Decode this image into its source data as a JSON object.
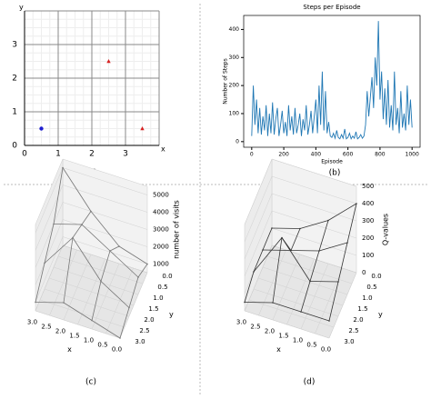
{
  "chart_data": [
    {
      "type": "scatter",
      "caption": "(a)",
      "xlabel": "x",
      "ylabel": "y",
      "xlim": [
        0,
        4
      ],
      "ylim": [
        0,
        4
      ],
      "xticks": [
        0,
        1,
        2,
        3
      ],
      "yticks": [
        0,
        1,
        2,
        3
      ],
      "grid": true,
      "series": [
        {
          "color": "#1f1fd0",
          "marker": "circle",
          "x": [
            0.5
          ],
          "values": [
            0.5
          ]
        },
        {
          "color": "#d62020",
          "marker": "triangle",
          "x": [
            2.5,
            3.5
          ],
          "values": [
            2.5,
            0.5
          ]
        }
      ]
    },
    {
      "type": "line",
      "caption": "(b)",
      "title": "Steps per Episode",
      "xlabel": "Episode",
      "ylabel": "Number of Steps",
      "xlim": [
        -50,
        1050
      ],
      "ylim": [
        -20,
        450
      ],
      "xticks": [
        0,
        200,
        400,
        600,
        800,
        1000
      ],
      "yticks": [
        0,
        100,
        200,
        300,
        400
      ],
      "series": [
        {
          "color": "#1f77b4",
          "x": [
            0,
            10,
            20,
            30,
            40,
            50,
            60,
            70,
            80,
            90,
            100,
            110,
            120,
            130,
            140,
            150,
            160,
            170,
            180,
            190,
            200,
            210,
            220,
            230,
            240,
            250,
            260,
            270,
            280,
            290,
            300,
            310,
            320,
            330,
            340,
            350,
            360,
            370,
            380,
            390,
            400,
            410,
            420,
            430,
            440,
            450,
            460,
            470,
            480,
            490,
            500,
            510,
            520,
            530,
            540,
            550,
            560,
            570,
            580,
            590,
            600,
            610,
            620,
            630,
            640,
            650,
            660,
            670,
            680,
            690,
            700,
            710,
            720,
            730,
            740,
            750,
            760,
            770,
            780,
            790,
            800,
            810,
            820,
            830,
            840,
            850,
            860,
            870,
            880,
            890,
            900,
            910,
            920,
            930,
            940,
            950,
            960,
            970,
            980,
            990,
            1000
          ],
          "values": [
            20,
            200,
            60,
            150,
            30,
            120,
            25,
            90,
            40,
            130,
            20,
            100,
            30,
            140,
            25,
            80,
            120,
            20,
            60,
            110,
            30,
            70,
            20,
            130,
            40,
            90,
            25,
            120,
            30,
            60,
            100,
            20,
            80,
            40,
            130,
            25,
            60,
            110,
            30,
            90,
            150,
            30,
            200,
            60,
            250,
            40,
            180,
            30,
            70,
            20,
            15,
            30,
            12,
            40,
            15,
            10,
            25,
            12,
            45,
            10,
            15,
            30,
            10,
            20,
            12,
            35,
            10,
            15,
            25,
            12,
            20,
            60,
            180,
            90,
            160,
            230,
            120,
            300,
            200,
            430,
            150,
            250,
            80,
            190,
            60,
            220,
            50,
            130,
            40,
            250,
            60,
            120,
            30,
            180,
            50,
            100,
            40,
            200,
            60,
            150,
            50
          ]
        }
      ]
    },
    {
      "type": "surface",
      "caption": "(c)",
      "xlabel": "x",
      "ylabel": "y",
      "zlabel": "number of visits",
      "x": [
        0,
        1,
        2,
        3
      ],
      "y": [
        0,
        1,
        2,
        3
      ],
      "z": [
        [
          1000,
          1500,
          3000,
          5000
        ],
        [
          1500,
          2500,
          3500,
          3000
        ],
        [
          1000,
          2000,
          4000,
          2000
        ],
        [
          500,
          1000,
          1500,
          1000
        ]
      ],
      "xticks": [
        0.0,
        0.5,
        1.0,
        1.5,
        2.0,
        2.5,
        3.0
      ],
      "yticks": [
        0.0,
        0.5,
        1.0,
        1.5,
        2.0,
        2.5,
        3.0
      ],
      "xtick_labels": [
        "0.0",
        "0.5",
        "1.0",
        "1.5",
        "2.0",
        "2.5",
        "3.0"
      ],
      "zlim": [
        500,
        5500
      ],
      "zticks": [
        1000,
        2000,
        3000,
        4000,
        5000
      ],
      "color": "#777"
    },
    {
      "type": "surface",
      "caption": "(d)",
      "xlabel": "x",
      "ylabel": "y",
      "zlabel": "Q-values",
      "x": [
        0,
        1,
        2,
        3
      ],
      "y": [
        0,
        1,
        2,
        3
      ],
      "z": [
        [
          400,
          250,
          150,
          100
        ],
        [
          300,
          200,
          150,
          100
        ],
        [
          200,
          150,
          350,
          100
        ],
        [
          100,
          100,
          100,
          50
        ]
      ],
      "xticks": [
        0.0,
        0.5,
        1.0,
        1.5,
        2.0,
        2.5,
        3.0
      ],
      "yticks": [
        0.0,
        0.5,
        1.0,
        1.5,
        2.0,
        2.5,
        3.0
      ],
      "xtick_labels": [
        "0.0",
        "0.5",
        "1.0",
        "1.5",
        "2.0",
        "2.5",
        "3.0"
      ],
      "zlim": [
        0,
        500
      ],
      "zticks": [
        0,
        100,
        200,
        300,
        400,
        500
      ],
      "color": "#333"
    }
  ]
}
